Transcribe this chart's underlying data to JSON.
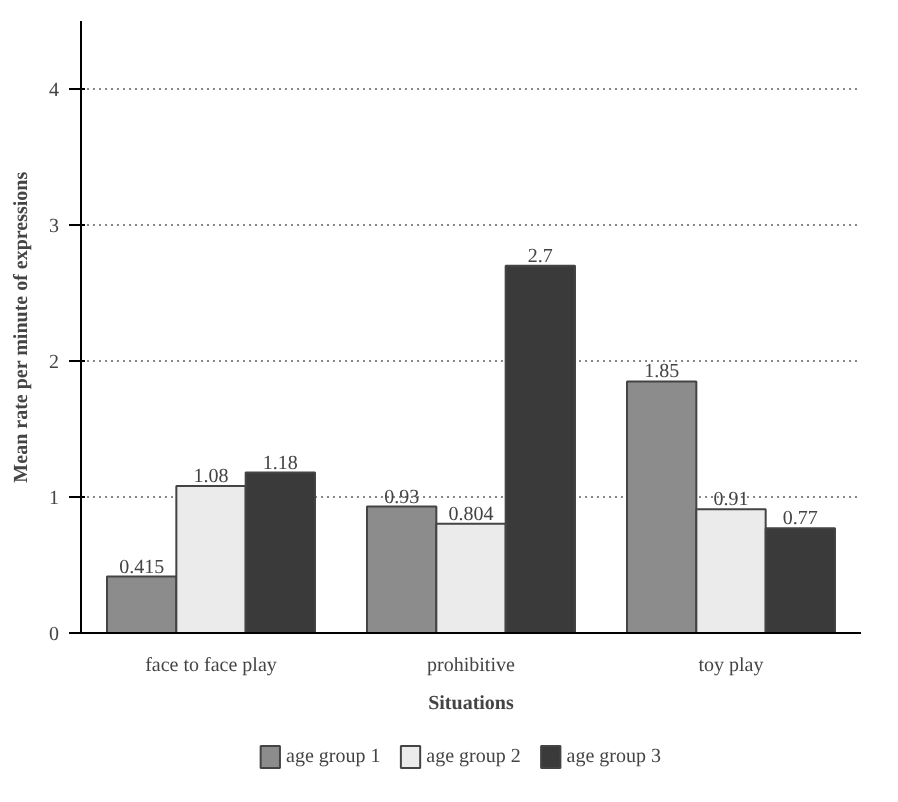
{
  "chart_data": {
    "type": "bar",
    "xlabel": "Situations",
    "ylabel": "Mean rate per minute of expressions",
    "categories": [
      "face to face play",
      "prohibitive",
      "toy play"
    ],
    "series": [
      {
        "name": "age group 1",
        "color": "#8c8c8c",
        "values": [
          0.415,
          0.93,
          1.85
        ]
      },
      {
        "name": "age group 2",
        "color": "#ebebeb",
        "values": [
          1.08,
          0.804,
          0.91
        ]
      },
      {
        "name": "age group 3",
        "color": "#3a3a3a",
        "values": [
          1.18,
          2.7,
          0.77
        ]
      }
    ],
    "ylim": [
      0,
      4.5
    ],
    "yticks": [
      0,
      1,
      2,
      3,
      4
    ],
    "grid": "y",
    "legend": "bottom",
    "data_labels": true
  }
}
